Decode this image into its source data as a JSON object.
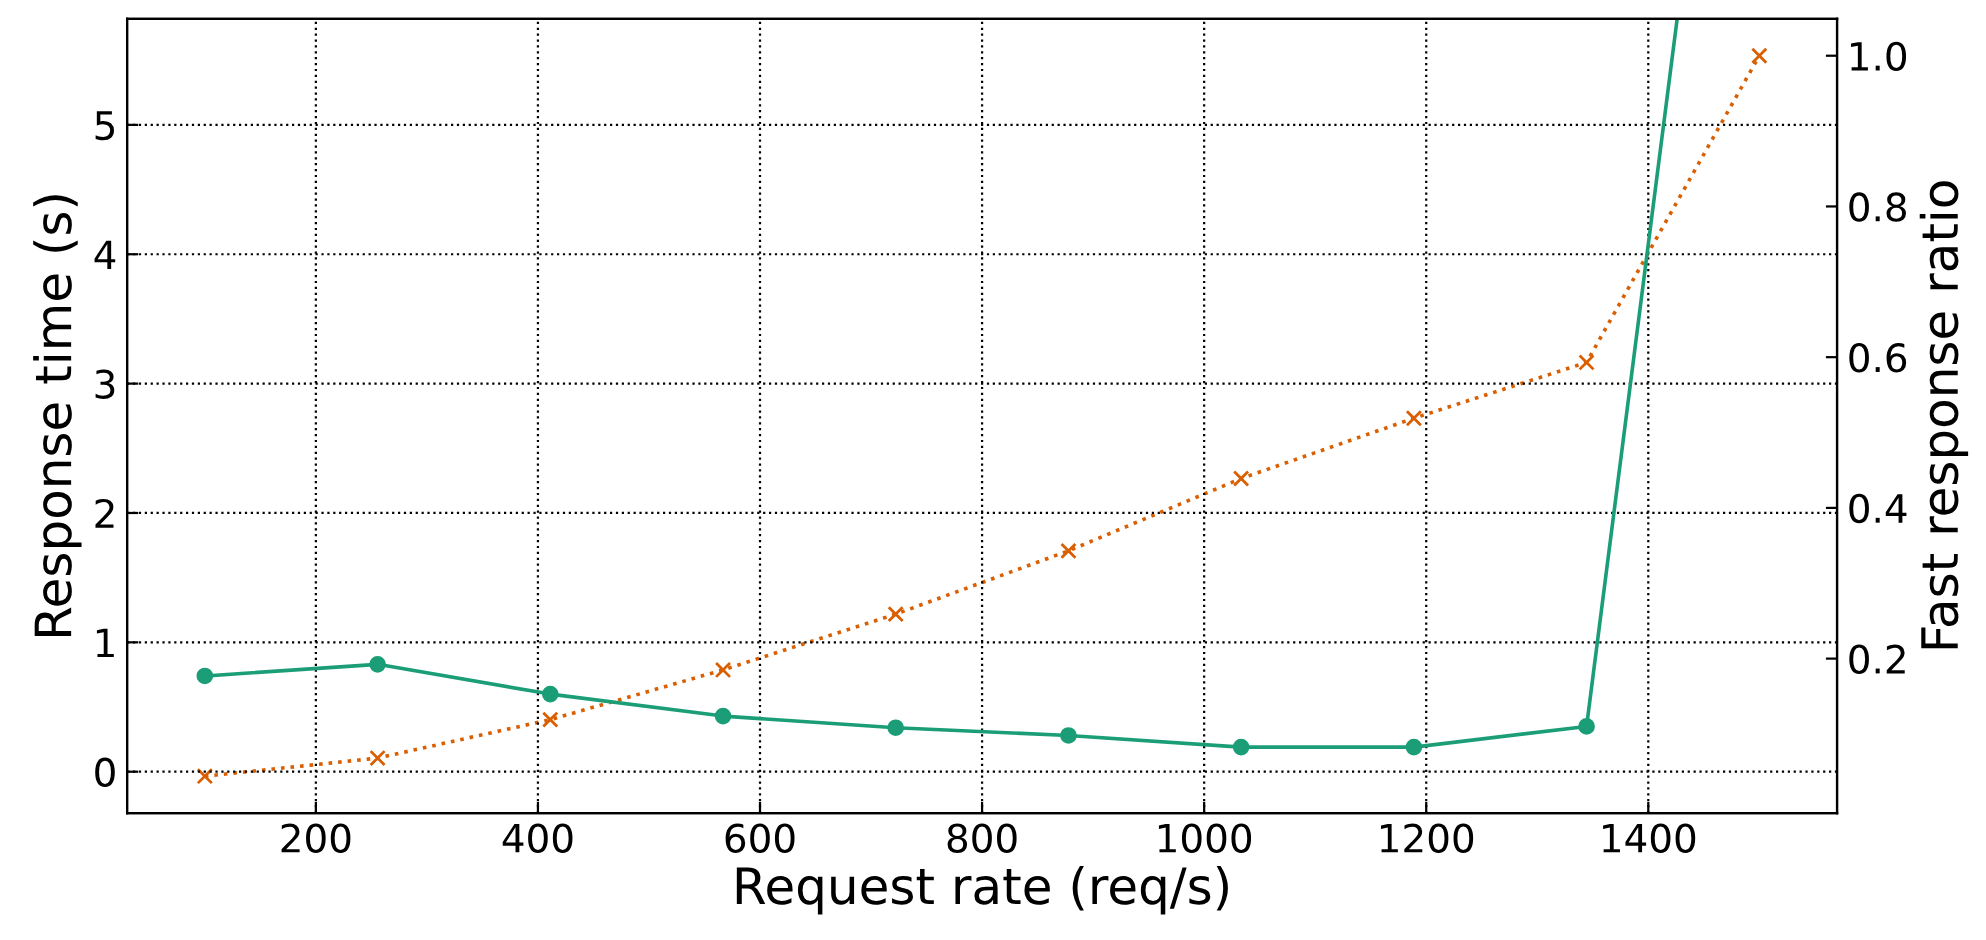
{
  "chart_data": {
    "type": "line",
    "xlabel": "Request rate (req/s)",
    "ylabel": "Response time (s)",
    "y2label": "Fast response ratio",
    "x": [
      100,
      255.6,
      411.1,
      566.7,
      722.2,
      877.8,
      1033.3,
      1188.9,
      1344.4,
      1500
    ],
    "series": [
      {
        "color": "#1b9e77",
        "marker": "circle",
        "line_style": "solid",
        "x": [
          100,
          255.6,
          411.1,
          566.7,
          722.2,
          877.8,
          1033.3,
          1188.9,
          1344.4,
          1426
        ],
        "values": [
          0.74,
          0.83,
          0.6,
          0.43,
          0.34,
          0.28,
          0.19,
          0.19,
          0.35,
          5.82
        ]
      },
      {
        "color": "#d95f02",
        "marker": "cross",
        "line_style": "dotted",
        "axis": "y2",
        "values": [
          0.044,
          0.068,
          0.119,
          0.185,
          0.259,
          0.343,
          0.439,
          0.519,
          0.593,
          1.0
        ]
      }
    ],
    "xlim": [
      30,
      1570
    ],
    "xticks": [
      200,
      400,
      600,
      800,
      1000,
      1200,
      1400
    ],
    "ylim": [
      -0.32,
      5.82
    ],
    "yticks": [
      0,
      1,
      2,
      3,
      4,
      5
    ],
    "y2lim": [
      -0.005,
      1.049
    ],
    "y2ticks": [
      0.2,
      0.4,
      0.6,
      0.8,
      {
        "value": 1,
        "label": "1.0"
      }
    ],
    "grid": true
  }
}
